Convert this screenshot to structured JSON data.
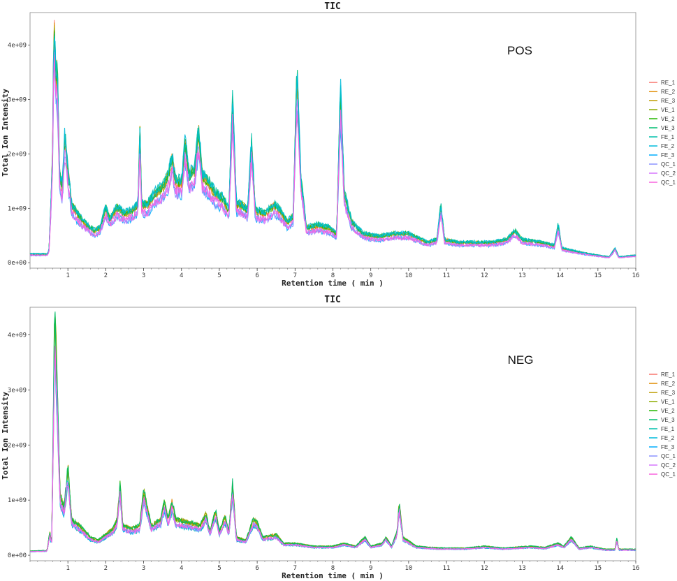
{
  "chart_data": [
    {
      "type": "line",
      "id": "pos",
      "title": "TIC",
      "annotation": "POS",
      "xlabel": "Retention time ( min )",
      "ylabel": "Total Ion Intensity",
      "xlim": [
        0,
        16
      ],
      "ylim": [
        -100000000.0,
        4600000000.0
      ],
      "x_ticks": [
        1,
        2,
        3,
        4,
        5,
        6,
        7,
        8,
        9,
        10,
        11,
        12,
        13,
        14,
        15,
        16
      ],
      "y_ticks": [
        0,
        1000000000.0,
        2000000000.0,
        3000000000.0,
        4000000000.0
      ],
      "y_tick_labels": [
        "0e+00",
        "1e+09",
        "2e+09",
        "3e+09",
        "4e+09"
      ],
      "legend_position": "right",
      "series": [
        {
          "name": "RE_1",
          "color": "#F8766D"
        },
        {
          "name": "RE_2",
          "color": "#E18A00"
        },
        {
          "name": "RE_3",
          "color": "#BE9C00"
        },
        {
          "name": "VE_1",
          "color": "#8CAB00"
        },
        {
          "name": "VE_2",
          "color": "#24B700"
        },
        {
          "name": "VE_3",
          "color": "#00BE70"
        },
        {
          "name": "FE_1",
          "color": "#00C1AB"
        },
        {
          "name": "FE_2",
          "color": "#00BBDA"
        },
        {
          "name": "FE_3",
          "color": "#00ACFC"
        },
        {
          "name": "QC_1",
          "color": "#8B93FF"
        },
        {
          "name": "QC_2",
          "color": "#D575FE"
        },
        {
          "name": "QC_1",
          "color": "#F962DD"
        }
      ],
      "profile": [
        [
          0,
          150000000.0
        ],
        [
          0.45,
          150000000.0
        ],
        [
          0.5,
          200000000.0
        ],
        [
          0.55,
          1000000000.0
        ],
        [
          0.6,
          2000000000.0
        ],
        [
          0.62,
          3500000000.0
        ],
        [
          0.65,
          4300000000.0
        ],
        [
          0.68,
          3000000000.0
        ],
        [
          0.72,
          3400000000.0
        ],
        [
          0.78,
          1500000000.0
        ],
        [
          0.85,
          1300000000.0
        ],
        [
          0.92,
          2200000000.0
        ],
        [
          1.0,
          1600000000.0
        ],
        [
          1.1,
          1000000000.0
        ],
        [
          1.3,
          800000000.0
        ],
        [
          1.5,
          650000000.0
        ],
        [
          1.7,
          550000000.0
        ],
        [
          1.85,
          600000000.0
        ],
        [
          2.0,
          950000000.0
        ],
        [
          2.1,
          750000000.0
        ],
        [
          2.3,
          950000000.0
        ],
        [
          2.5,
          850000000.0
        ],
        [
          2.7,
          900000000.0
        ],
        [
          2.85,
          1000000000.0
        ],
        [
          2.9,
          2300000000.0
        ],
        [
          2.95,
          1000000000.0
        ],
        [
          3.1,
          1000000000.0
        ],
        [
          3.3,
          1200000000.0
        ],
        [
          3.5,
          1300000000.0
        ],
        [
          3.65,
          1500000000.0
        ],
        [
          3.75,
          1800000000.0
        ],
        [
          3.85,
          1400000000.0
        ],
        [
          4.0,
          1400000000.0
        ],
        [
          4.1,
          2100000000.0
        ],
        [
          4.2,
          1500000000.0
        ],
        [
          4.35,
          1600000000.0
        ],
        [
          4.45,
          2300000000.0
        ],
        [
          4.55,
          1500000000.0
        ],
        [
          4.7,
          1400000000.0
        ],
        [
          4.9,
          1200000000.0
        ],
        [
          5.1,
          1100000000.0
        ],
        [
          5.25,
          900000000.0
        ],
        [
          5.35,
          2800000000.0
        ],
        [
          5.45,
          1000000000.0
        ],
        [
          5.6,
          1000000000.0
        ],
        [
          5.75,
          900000000.0
        ],
        [
          5.85,
          2100000000.0
        ],
        [
          5.95,
          900000000.0
        ],
        [
          6.2,
          850000000.0
        ],
        [
          6.45,
          1000000000.0
        ],
        [
          6.6,
          900000000.0
        ],
        [
          6.8,
          700000000.0
        ],
        [
          6.95,
          800000000.0
        ],
        [
          7.05,
          3300000000.0
        ],
        [
          7.15,
          1500000000.0
        ],
        [
          7.3,
          600000000.0
        ],
        [
          7.6,
          650000000.0
        ],
        [
          7.9,
          600000000.0
        ],
        [
          8.1,
          500000000.0
        ],
        [
          8.2,
          3000000000.0
        ],
        [
          8.3,
          1200000000.0
        ],
        [
          8.5,
          700000000.0
        ],
        [
          8.8,
          500000000.0
        ],
        [
          9.2,
          450000000.0
        ],
        [
          9.6,
          500000000.0
        ],
        [
          10.0,
          500000000.0
        ],
        [
          10.5,
          350000000.0
        ],
        [
          10.75,
          400000000.0
        ],
        [
          10.85,
          1000000000.0
        ],
        [
          10.95,
          400000000.0
        ],
        [
          11.3,
          350000000.0
        ],
        [
          11.7,
          350000000.0
        ],
        [
          12.2,
          350000000.0
        ],
        [
          12.6,
          400000000.0
        ],
        [
          12.8,
          550000000.0
        ],
        [
          13.0,
          400000000.0
        ],
        [
          13.5,
          350000000.0
        ],
        [
          13.85,
          300000000.0
        ],
        [
          13.95,
          650000000.0
        ],
        [
          14.05,
          250000000.0
        ],
        [
          14.4,
          200000000.0
        ],
        [
          14.8,
          150000000.0
        ],
        [
          15.3,
          100000000.0
        ],
        [
          15.45,
          250000000.0
        ],
        [
          15.55,
          100000000.0
        ],
        [
          16.0,
          130000000.0
        ]
      ]
    },
    {
      "type": "line",
      "id": "neg",
      "title": "TIC",
      "annotation": "NEG",
      "xlabel": "Retention time ( min )",
      "ylabel": "Total Ion Intensity",
      "xlim": [
        0,
        16
      ],
      "ylim": [
        -100000000.0,
        4500000000.0
      ],
      "x_ticks": [
        1,
        2,
        3,
        4,
        5,
        6,
        7,
        8,
        9,
        10,
        11,
        12,
        13,
        14,
        15,
        16
      ],
      "y_ticks": [
        0,
        1000000000.0,
        2000000000.0,
        3000000000.0,
        4000000000.0
      ],
      "y_tick_labels": [
        "0e+00",
        "1e+09",
        "2e+09",
        "3e+09",
        "4e+09"
      ],
      "legend_position": "right",
      "series": [
        {
          "name": "RE_1",
          "color": "#F8766D"
        },
        {
          "name": "RE_2",
          "color": "#E18A00"
        },
        {
          "name": "RE_3",
          "color": "#BE9C00"
        },
        {
          "name": "VE_1",
          "color": "#8CAB00"
        },
        {
          "name": "VE_2",
          "color": "#24B700"
        },
        {
          "name": "VE_3",
          "color": "#00BE70"
        },
        {
          "name": "FE_1",
          "color": "#00C1AB"
        },
        {
          "name": "FE_2",
          "color": "#00BBDA"
        },
        {
          "name": "FE_3",
          "color": "#00ACFC"
        },
        {
          "name": "QC_1",
          "color": "#8B93FF"
        },
        {
          "name": "QC_2",
          "color": "#D575FE"
        },
        {
          "name": "QC_1",
          "color": "#F962DD"
        }
      ],
      "profile": [
        [
          0,
          70000000.0
        ],
        [
          0.45,
          80000000.0
        ],
        [
          0.52,
          400000000.0
        ],
        [
          0.57,
          200000000.0
        ],
        [
          0.62,
          2500000000.0
        ],
        [
          0.65,
          4200000000.0
        ],
        [
          0.7,
          3200000000.0
        ],
        [
          0.75,
          2000000000.0
        ],
        [
          0.8,
          1000000000.0
        ],
        [
          0.9,
          800000000.0
        ],
        [
          1.0,
          1500000000.0
        ],
        [
          1.1,
          600000000.0
        ],
        [
          1.3,
          500000000.0
        ],
        [
          1.6,
          300000000.0
        ],
        [
          1.8,
          250000000.0
        ],
        [
          2.0,
          350000000.0
        ],
        [
          2.2,
          450000000.0
        ],
        [
          2.3,
          600000000.0
        ],
        [
          2.38,
          1200000000.0
        ],
        [
          2.45,
          500000000.0
        ],
        [
          2.7,
          450000000.0
        ],
        [
          2.9,
          500000000.0
        ],
        [
          3.0,
          1100000000.0
        ],
        [
          3.1,
          800000000.0
        ],
        [
          3.2,
          500000000.0
        ],
        [
          3.45,
          600000000.0
        ],
        [
          3.55,
          900000000.0
        ],
        [
          3.65,
          600000000.0
        ],
        [
          3.75,
          900000000.0
        ],
        [
          3.85,
          600000000.0
        ],
        [
          4.2,
          550000000.0
        ],
        [
          4.5,
          500000000.0
        ],
        [
          4.65,
          700000000.0
        ],
        [
          4.75,
          400000000.0
        ],
        [
          4.9,
          750000000.0
        ],
        [
          5.0,
          400000000.0
        ],
        [
          5.15,
          650000000.0
        ],
        [
          5.25,
          400000000.0
        ],
        [
          5.35,
          1200000000.0
        ],
        [
          5.45,
          300000000.0
        ],
        [
          5.7,
          250000000.0
        ],
        [
          5.9,
          600000000.0
        ],
        [
          6.0,
          550000000.0
        ],
        [
          6.15,
          300000000.0
        ],
        [
          6.5,
          350000000.0
        ],
        [
          6.7,
          200000000.0
        ],
        [
          7.0,
          200000000.0
        ],
        [
          7.5,
          150000000.0
        ],
        [
          8.0,
          150000000.0
        ],
        [
          8.3,
          200000000.0
        ],
        [
          8.6,
          150000000.0
        ],
        [
          8.85,
          300000000.0
        ],
        [
          9.0,
          150000000.0
        ],
        [
          9.3,
          200000000.0
        ],
        [
          9.4,
          300000000.0
        ],
        [
          9.55,
          150000000.0
        ],
        [
          9.7,
          400000000.0
        ],
        [
          9.75,
          900000000.0
        ],
        [
          9.85,
          300000000.0
        ],
        [
          10.2,
          150000000.0
        ],
        [
          10.8,
          120000000.0
        ],
        [
          11.5,
          120000000.0
        ],
        [
          12.0,
          150000000.0
        ],
        [
          12.5,
          120000000.0
        ],
        [
          13.2,
          150000000.0
        ],
        [
          13.6,
          130000000.0
        ],
        [
          13.95,
          200000000.0
        ],
        [
          14.1,
          150000000.0
        ],
        [
          14.3,
          300000000.0
        ],
        [
          14.5,
          120000000.0
        ],
        [
          14.8,
          150000000.0
        ],
        [
          15.2,
          100000000.0
        ],
        [
          15.45,
          100000000.0
        ],
        [
          15.5,
          280000000.0
        ],
        [
          15.55,
          100000000.0
        ],
        [
          16.0,
          100000000.0
        ]
      ]
    }
  ]
}
